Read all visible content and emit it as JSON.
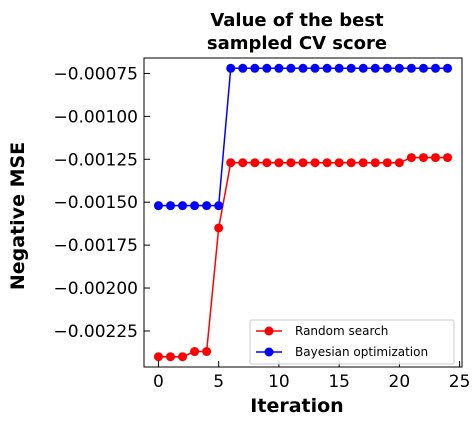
{
  "chart_data": {
    "type": "line",
    "title_lines": [
      "Value of the best",
      "sampled CV score"
    ],
    "xlabel": "Iteration",
    "ylabel": "Negative MSE",
    "xlim": [
      -1.2,
      25.2
    ],
    "ylim": [
      -0.00246,
      -0.00066
    ],
    "x_ticks": [
      0,
      5,
      10,
      15,
      20,
      25
    ],
    "x_tick_labels": [
      "0",
      "5",
      "10",
      "15",
      "20",
      "25"
    ],
    "y_ticks": [
      -0.00075,
      -0.001,
      -0.00125,
      -0.0015,
      -0.00175,
      -0.002,
      -0.00225
    ],
    "y_tick_labels": [
      "−0.00075",
      "−0.00100",
      "−0.00125",
      "−0.00150",
      "−0.00175",
      "−0.00200",
      "−0.00225"
    ],
    "grid": false,
    "legend_position": "lower-right",
    "x": [
      0,
      1,
      2,
      3,
      4,
      5,
      6,
      7,
      8,
      9,
      10,
      11,
      12,
      13,
      14,
      15,
      16,
      17,
      18,
      19,
      20,
      21,
      22,
      23,
      24
    ],
    "series": [
      {
        "name": "Random search",
        "color": "#ff0000",
        "values": [
          -0.0024,
          -0.0024,
          -0.0024,
          -0.00237,
          -0.00237,
          -0.00165,
          -0.00127,
          -0.00127,
          -0.00127,
          -0.00127,
          -0.00127,
          -0.00127,
          -0.00127,
          -0.00127,
          -0.00127,
          -0.00127,
          -0.00127,
          -0.00127,
          -0.00127,
          -0.00127,
          -0.00127,
          -0.00124,
          -0.00124,
          -0.00124,
          -0.00124
        ]
      },
      {
        "name": "Bayesian optimization",
        "color": "#0000ff",
        "values": [
          -0.00152,
          -0.00152,
          -0.00152,
          -0.00152,
          -0.00152,
          -0.00152,
          -0.00072,
          -0.00072,
          -0.00072,
          -0.00072,
          -0.00072,
          -0.00072,
          -0.00072,
          -0.00072,
          -0.00072,
          -0.00072,
          -0.00072,
          -0.00072,
          -0.00072,
          -0.00072,
          -0.00072,
          -0.00072,
          -0.00072,
          -0.00072,
          -0.00072
        ]
      }
    ]
  }
}
